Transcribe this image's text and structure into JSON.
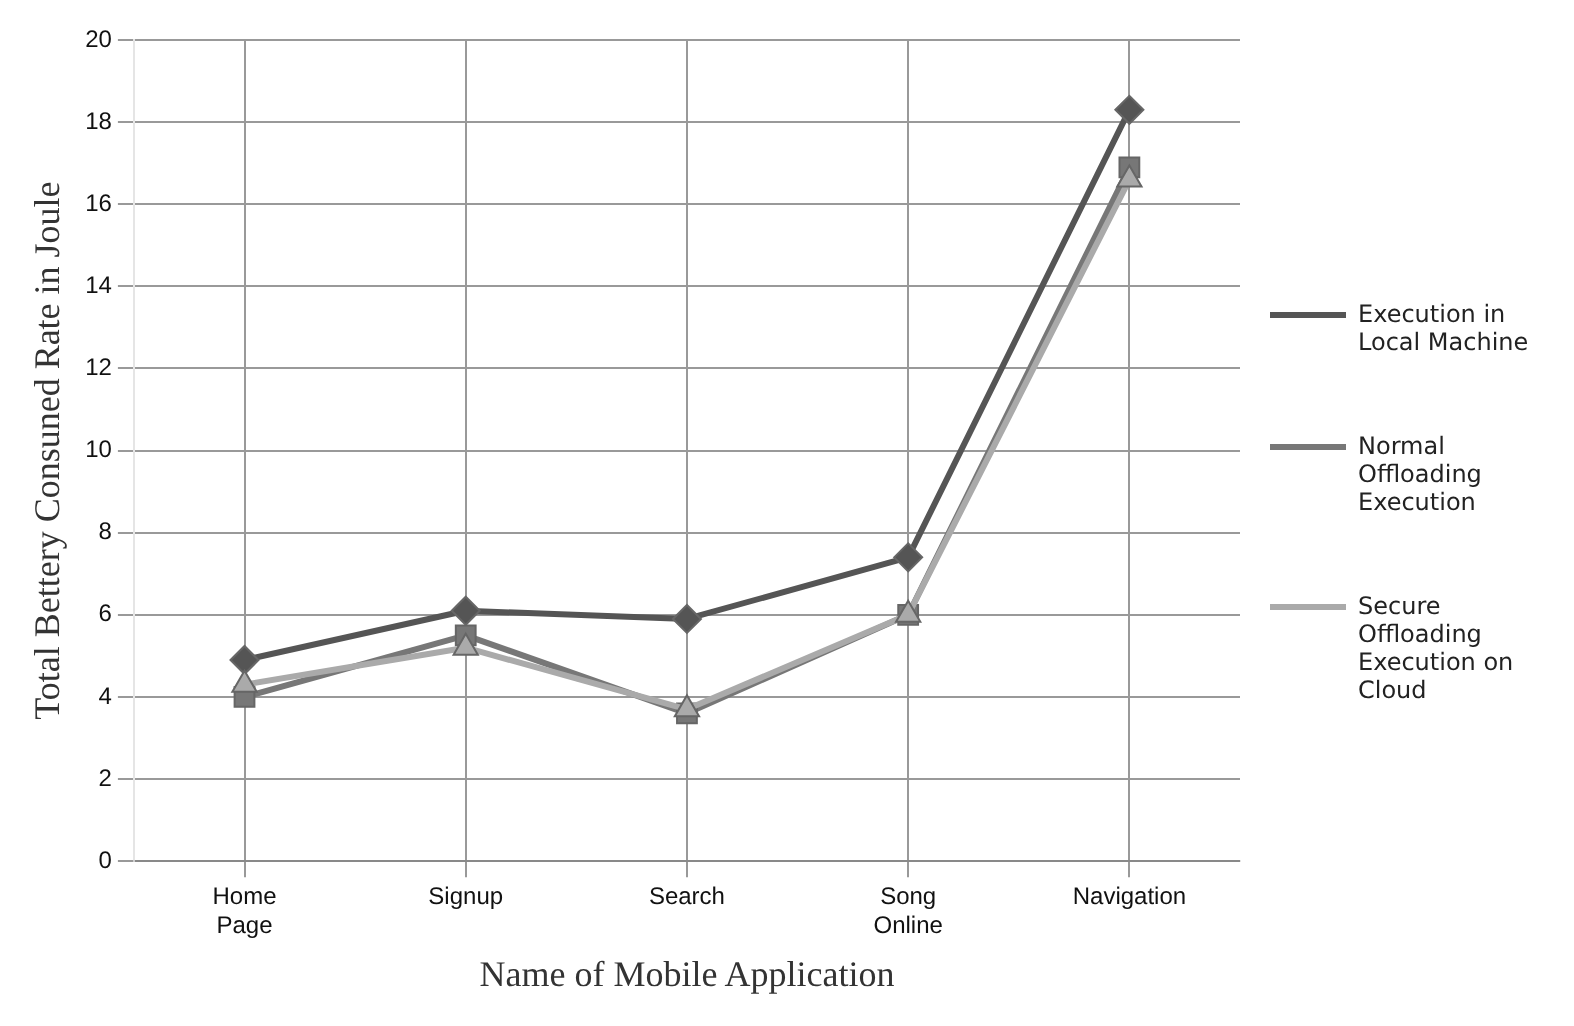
{
  "chart_data": {
    "type": "line",
    "xlabel": "Name of Mobile Application",
    "ylabel": "Total Bettery Consuned Rate in Joule",
    "categories": [
      "Home Page",
      "Signup",
      "Search",
      "Song Online",
      "Navigation"
    ],
    "series": [
      {
        "name": "Execution in Local Machine",
        "color": "#555555",
        "marker": "diamond",
        "values": [
          4.9,
          6.1,
          5.9,
          7.4,
          18.3
        ]
      },
      {
        "name": "Normal Offloading Execution",
        "color": "#777777",
        "marker": "square",
        "values": [
          4.0,
          5.5,
          3.6,
          6.0,
          16.9
        ]
      },
      {
        "name": "Secure Offloading Execution on Cloud",
        "color": "#aaaaaa",
        "marker": "triangle",
        "values": [
          4.3,
          5.2,
          3.7,
          6.0,
          16.6
        ]
      }
    ],
    "ylim": [
      0,
      20
    ],
    "yticks": [
      0,
      2,
      4,
      6,
      8,
      10,
      12,
      14,
      16,
      18,
      20
    ],
    "grid": true,
    "legend": "right"
  }
}
